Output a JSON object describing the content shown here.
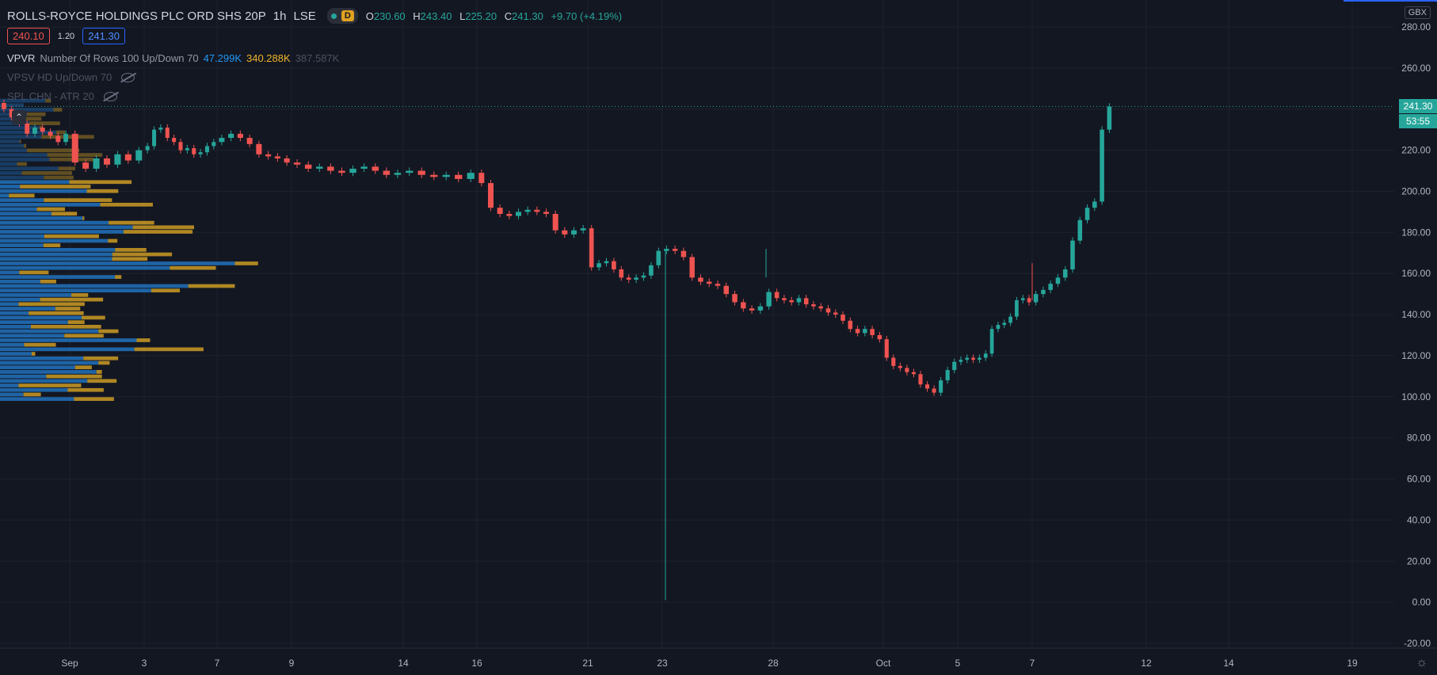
{
  "symbol": {
    "title": "ROLLS-ROYCE HOLDINGS PLC ORD SHS 20P",
    "interval": "1h",
    "exchange": "LSE",
    "badge": "D",
    "ohlc": {
      "o_label": "O",
      "o": "230.60",
      "h_label": "H",
      "h": "243.40",
      "l_label": "L",
      "l": "225.20",
      "c_label": "C",
      "c": "241.30",
      "change": "+9.70 (+4.19%)"
    }
  },
  "quote": {
    "bid": "240.10",
    "spread": "1.20",
    "ask": "241.30"
  },
  "indicators": {
    "vpvr": {
      "name": "VPVR",
      "params": "Number Of Rows 100 Up/Down 70",
      "up": "47.299K",
      "down": "340.288K",
      "total": "387.587K"
    },
    "vpsv": {
      "label": "VPSV HD Up/Down 70"
    },
    "spl": {
      "label": "SPL CHN - ATR 20"
    }
  },
  "currency": "GBX",
  "last_price": {
    "price": "241.30",
    "countdown": "53:55"
  },
  "colors": {
    "up": "#26a69a",
    "down": "#ef5350",
    "vol_up": "#1f64a6",
    "vol_down": "#c29423",
    "bg": "#131722",
    "grid": "#1e222d"
  },
  "chart_data": {
    "type": "candlestick",
    "title": "ROLLS-ROYCE HOLDINGS PLC ORD SHS 20P",
    "ylim": [
      -20,
      280
    ],
    "y_ticks": [
      "280.00",
      "260.00",
      "240.00",
      "220.00",
      "200.00",
      "180.00",
      "160.00",
      "140.00",
      "120.00",
      "100.00",
      "80.00",
      "60.00",
      "40.00",
      "20.00",
      "0.00",
      "-20.00"
    ],
    "x_ticks": [
      "Sep",
      "3",
      "7",
      "9",
      "14",
      "16",
      "21",
      "23",
      "28",
      "Oct",
      "5",
      "7",
      "12",
      "14",
      "19"
    ],
    "grid": true,
    "series": [
      {
        "segment": "Sep",
        "close": [
          240,
          236,
          233,
          228,
          231,
          229,
          227,
          224,
          228
        ]
      },
      {
        "segment": "Sep-3",
        "close": [
          214,
          211,
          216,
          213,
          218,
          215,
          220
        ]
      },
      {
        "segment": "3-7",
        "close": [
          222,
          230,
          231,
          226,
          224,
          220,
          221,
          218,
          219,
          222,
          224
        ]
      },
      {
        "segment": "7-9",
        "close": [
          226,
          228,
          226,
          223,
          218,
          217,
          216,
          214
        ]
      },
      {
        "segment": "9-14",
        "close": [
          213,
          211,
          212,
          210,
          209,
          211,
          212,
          210,
          208,
          209
        ]
      },
      {
        "segment": "14-16",
        "close": [
          210,
          208,
          207,
          208,
          206,
          209
        ]
      },
      {
        "segment": "16-21",
        "close": [
          204,
          192,
          189,
          188,
          190,
          191,
          190,
          189,
          181,
          179,
          181,
          182
        ]
      },
      {
        "segment": "21-23",
        "close": [
          163,
          165,
          166,
          162,
          158,
          157,
          158,
          159,
          164,
          171
        ]
      },
      {
        "segment": "23-28",
        "close": [
          172,
          171,
          168,
          158,
          156,
          155,
          154,
          150,
          146,
          143,
          142,
          144,
          151
        ]
      },
      {
        "segment": "28-Oct",
        "close": [
          148,
          147,
          146,
          148,
          145,
          144,
          143,
          141,
          140,
          137,
          133,
          131,
          133,
          130,
          128
        ]
      },
      {
        "segment": "Oct-5",
        "close": [
          119,
          115,
          114,
          112,
          111,
          106,
          104,
          102,
          108,
          113,
          117
        ]
      },
      {
        "segment": "5-7",
        "close": [
          118,
          119,
          118,
          119,
          121,
          133,
          135,
          136,
          139,
          147,
          148,
          146
        ]
      },
      {
        "segment": "7-12",
        "close": [
          150,
          152,
          155,
          158,
          162,
          176,
          186,
          192,
          195,
          230,
          241.3
        ]
      }
    ],
    "annotations": [
      {
        "text": "241.30"
      },
      {
        "text": "53:55"
      }
    ]
  }
}
